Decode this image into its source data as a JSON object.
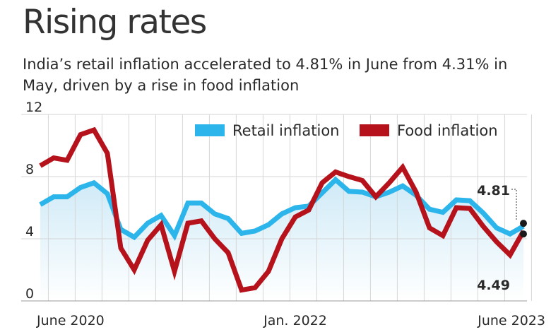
{
  "title": "Rising rates",
  "subtitle": "India’s retail inflation accelerated to 4.81% in June from 4.31% in May, driven by a rise in food inflation",
  "colors": {
    "retail": "#2bb5ea",
    "food": "#b5121b",
    "grid": "#d6d6d6",
    "area_top": "#cfeaf7",
    "area_bottom": "#ffffff",
    "marker": "#1a1a1a"
  },
  "chart_data": {
    "type": "line",
    "x": [
      "Jun 2020",
      "Jul 2020",
      "Aug 2020",
      "Sep 2020",
      "Oct 2020",
      "Nov 2020",
      "Dec 2020",
      "Jan 2021",
      "Feb 2021",
      "Mar 2021",
      "Apr 2021",
      "May 2021",
      "Jun 2021",
      "Jul 2021",
      "Aug 2021",
      "Sep 2021",
      "Oct 2021",
      "Nov 2021",
      "Dec 2021",
      "Jan 2022",
      "Feb 2022",
      "Mar 2022",
      "Apr 2022",
      "May 2022",
      "Jun 2022",
      "Jul 2022",
      "Aug 2022",
      "Sep 2022",
      "Oct 2022",
      "Nov 2022",
      "Dec 2022",
      "Jan 2023",
      "Feb 2023",
      "Mar 2023",
      "Apr 2023",
      "May 2023",
      "Jun 2023"
    ],
    "x_tick_labels": [
      {
        "index": 0,
        "label": "June 2020"
      },
      {
        "index": 19,
        "label": "Jan. 2022"
      },
      {
        "index": 36,
        "label": "June 2023"
      }
    ],
    "ylim": [
      0,
      12
    ],
    "y_ticks": [
      0,
      4,
      8,
      12
    ],
    "grid": true,
    "legend_position": "top-right",
    "series": [
      {
        "name": "Retail inflation",
        "values": [
          6.2,
          6.7,
          6.7,
          7.3,
          7.6,
          6.9,
          4.6,
          4.1,
          5.0,
          5.5,
          4.2,
          6.3,
          6.3,
          5.6,
          5.3,
          4.35,
          4.5,
          4.9,
          5.6,
          6.0,
          6.1,
          6.95,
          7.8,
          7.05,
          7.0,
          6.7,
          7.0,
          7.4,
          6.8,
          5.9,
          5.7,
          6.5,
          6.45,
          5.66,
          4.7,
          4.31,
          4.81
        ]
      },
      {
        "name": "Food inflation",
        "values": [
          8.7,
          9.2,
          9.05,
          10.7,
          11.0,
          9.5,
          3.4,
          2.0,
          3.9,
          4.9,
          1.9,
          5.0,
          5.15,
          4.0,
          3.1,
          0.7,
          0.85,
          1.9,
          4.0,
          5.4,
          5.85,
          7.6,
          8.3,
          8.0,
          7.75,
          6.7,
          7.6,
          8.6,
          7.0,
          4.7,
          4.2,
          6.0,
          5.95,
          4.8,
          3.8,
          2.96,
          4.49
        ]
      }
    ],
    "annotations": [
      {
        "series": "Retail inflation",
        "index": 36,
        "label": "4.81"
      },
      {
        "series": "Food inflation",
        "index": 36,
        "label": "4.49"
      }
    ]
  }
}
